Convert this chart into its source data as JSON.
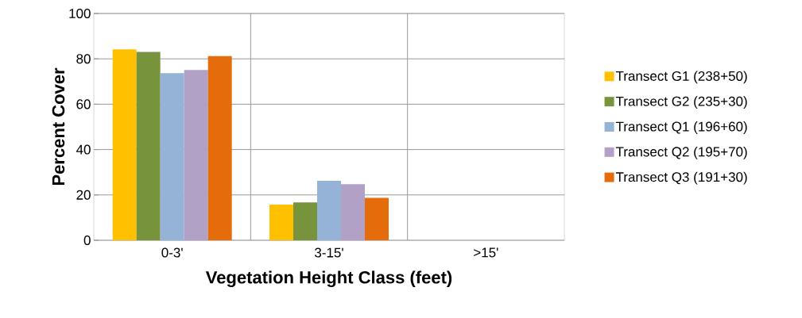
{
  "chart_data": {
    "type": "bar",
    "xlabel": "Vegetation Height Class (feet)",
    "ylabel": "Percent Cover",
    "categories": [
      "0-3'",
      "3-15'",
      ">15'"
    ],
    "series": [
      {
        "name": "Transect G1 (238+50)",
        "color": "#ffc000",
        "values": [
          84.2,
          15.7,
          0
        ]
      },
      {
        "name": "Transect G2 (235+30)",
        "color": "#77933c",
        "values": [
          83.0,
          16.7,
          0
        ]
      },
      {
        "name": "Transect Q1 (196+60)",
        "color": "#95b3d7",
        "values": [
          73.7,
          26.2,
          0
        ]
      },
      {
        "name": "Transect Q2 (195+70)",
        "color": "#b2a1c7",
        "values": [
          75.1,
          24.7,
          0
        ]
      },
      {
        "name": "Transect Q3 (191+30)",
        "color": "#e46c0a",
        "values": [
          81.2,
          18.7,
          0
        ]
      }
    ],
    "ylim": [
      0,
      100
    ],
    "yticks": [
      0,
      20,
      40,
      60,
      80,
      100
    ],
    "grid": true,
    "legend": "right"
  }
}
